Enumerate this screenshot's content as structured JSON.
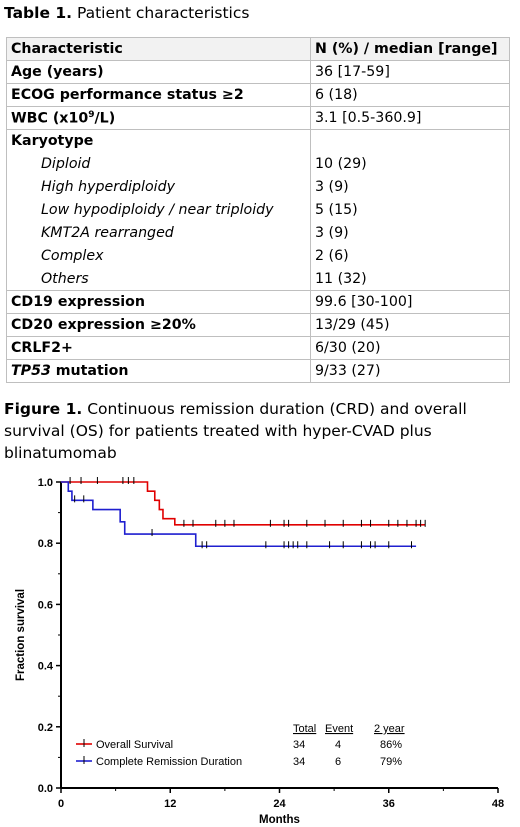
{
  "table_caption": {
    "label": "Table 1.",
    "text": " Patient characteristics"
  },
  "table": {
    "header": [
      "Characteristic",
      "N (%) / median [range]"
    ],
    "rows": [
      {
        "label": "Age (years)",
        "value": "36 [17-59]"
      },
      {
        "label": "ECOG performance status ≥2",
        "value": "6 (18)"
      },
      {
        "label": "WBC (x10",
        "label_sup": "9",
        "label_tail": "/L)",
        "value": "3.1 [0.5-360.9]"
      }
    ],
    "karyotype": {
      "label": "Karyotype",
      "items": [
        {
          "label": "Diploid",
          "value": "10 (29)"
        },
        {
          "label": "High hyperdiploidy",
          "value": "3 (9)"
        },
        {
          "label": "Low hypodiploidy / near triploidy",
          "value": "5 (15)"
        },
        {
          "label": "KMT2A rearranged",
          "value": "3 (9)"
        },
        {
          "label": "Complex",
          "value": "2 (6)"
        },
        {
          "label": "Others",
          "value": "11 (32)"
        }
      ]
    },
    "rows_after": [
      {
        "label": "CD19 expression",
        "value": "99.6 [30-100]"
      },
      {
        "label": "CD20 expression ≥20%",
        "value": "13/29 (45)"
      },
      {
        "label": "CRLF2+",
        "value": "6/30 (20)"
      },
      {
        "label": "TP53",
        "label_tail": " mutation",
        "value": "9/33 (27)"
      }
    ]
  },
  "figure_caption": {
    "label": "Figure 1.",
    "text": " Continuous remission duration (CRD) and overall survival (OS) for patients treated with hyper-CVAD plus blinatumomab"
  },
  "chart_data": {
    "type": "line",
    "xlabel": "Months",
    "ylabel": "Fraction survival",
    "xlim": [
      0,
      48
    ],
    "ylim": [
      0,
      1
    ],
    "x_ticks": [
      "0",
      "12",
      "24",
      "36",
      "48"
    ],
    "y_ticks": [
      "0.0",
      "0.2",
      "0.4",
      "0.6",
      "0.8",
      "1.0"
    ],
    "series": [
      {
        "name": "Overall Survival",
        "color": "#e00000",
        "steps": [
          [
            0,
            1.0
          ],
          [
            9.5,
            0.97
          ],
          [
            10.3,
            0.94
          ],
          [
            10.8,
            0.91
          ],
          [
            11.2,
            0.88
          ],
          [
            12.5,
            0.86
          ],
          [
            40,
            0.86
          ]
        ],
        "censors": [
          1,
          2.2,
          4,
          6.8,
          7.4,
          8,
          13.5,
          14.5,
          17,
          18,
          19,
          23,
          24.5,
          25,
          27,
          29,
          31,
          33,
          34,
          36,
          37,
          38,
          39,
          39.5,
          40
        ]
      },
      {
        "name": "Complete Remission Duration",
        "color": "#1f1fcf",
        "steps": [
          [
            0,
            1.0
          ],
          [
            0.8,
            0.97
          ],
          [
            1.2,
            0.94
          ],
          [
            3.5,
            0.91
          ],
          [
            6.5,
            0.87
          ],
          [
            7,
            0.83
          ],
          [
            14.8,
            0.79
          ],
          [
            39,
            0.79
          ]
        ],
        "censors": [
          1.5,
          2.5,
          10,
          15.5,
          16,
          22.5,
          24.5,
          25,
          25.5,
          26,
          27,
          29.5,
          31,
          33,
          34,
          34.5,
          36,
          38.5
        ]
      }
    ],
    "legend": {
      "headers": [
        "Total",
        "Event",
        "2 year"
      ],
      "rows": [
        {
          "name": "Overall Survival",
          "total": "34",
          "event": "4",
          "two_year": "86%"
        },
        {
          "name": "Complete Remission Duration",
          "total": "34",
          "event": "6",
          "two_year": "79%"
        }
      ]
    }
  }
}
